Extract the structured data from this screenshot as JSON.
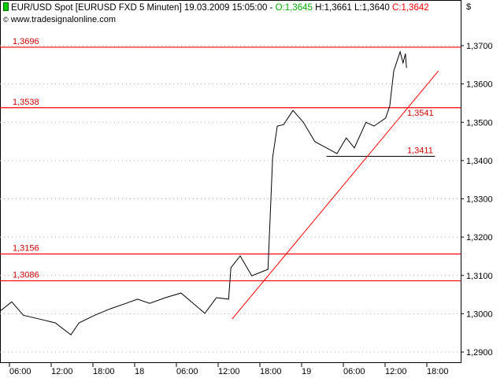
{
  "header": {
    "instrument": "EUR/USD Spot [EURUSD FXD  5 Minuten] 19.03.2009 15:05:00 - ",
    "open": "O:1,3645",
    "high": "H:1,3661",
    "low": "L:1,3640",
    "close": "C:1,3642",
    "source": "www.tradesignalonline.com",
    "currency": "$"
  },
  "colors": {
    "price": "#000000",
    "levels": "#ff0000",
    "level_labels": "#cc0000",
    "open": "#00aa00",
    "close": "#ff0000",
    "grid": "#999999"
  },
  "chart_data": {
    "type": "line",
    "title": "EUR/USD Spot [EURUSD FXD  5 Minuten]",
    "ylim": [
      1.288,
      1.372
    ],
    "y_ticks": [
      "1,2900",
      "1,3000",
      "1,3100",
      "1,3200",
      "1,3300",
      "1,3400",
      "1,3500",
      "1,3600",
      "1,3700"
    ],
    "x_ticks": [
      {
        "t": "17.03 06:00",
        "label": "06:00"
      },
      {
        "t": "17.03 12:00",
        "label": "12:00"
      },
      {
        "t": "17.03 18:00",
        "label": "18:00"
      },
      {
        "t": "18.03 00:00",
        "label": "18"
      },
      {
        "t": "18.03 06:00",
        "label": "06:00"
      },
      {
        "t": "18.03 12:00",
        "label": "12:00"
      },
      {
        "t": "18.03 18:00",
        "label": "18:00"
      },
      {
        "t": "19.03 00:00",
        "label": "19"
      },
      {
        "t": "19.03 06:00",
        "label": "06:00"
      },
      {
        "t": "19.03 12:00",
        "label": "12:00"
      },
      {
        "t": "19.03 18:00",
        "label": "18:00"
      }
    ],
    "grid": "horizontal dotted",
    "series": [
      {
        "points": [
          [
            "17.03 04:40",
            1.3007
          ],
          [
            "17.03 06:20",
            1.3031
          ],
          [
            "17.03 08:00",
            1.2996
          ],
          [
            "17.03 10:20",
            1.2986
          ],
          [
            "17.03 12:35",
            1.2976
          ],
          [
            "17.03 14:50",
            1.2945
          ],
          [
            "17.03 16:00",
            1.2976
          ],
          [
            "17.03 18:15",
            1.2996
          ],
          [
            "17.03 20:30",
            1.3013
          ],
          [
            "17.03 22:45",
            1.3027
          ],
          [
            "18.03 00:25",
            1.3038
          ],
          [
            "18.03 02:10",
            1.3027
          ],
          [
            "18.03 04:25",
            1.3042
          ],
          [
            "18.03 06:40",
            1.3054
          ],
          [
            "18.03 08:25",
            1.3027
          ],
          [
            "18.03 10:05",
            1.3001
          ],
          [
            "18.03 11:45",
            1.3042
          ],
          [
            "18.03 13:30",
            1.3038
          ],
          [
            "18.03 13:50",
            1.312
          ],
          [
            "18.03 15:10",
            1.3151
          ],
          [
            "18.03 16:50",
            1.3099
          ],
          [
            "18.03 19:10",
            1.3116
          ],
          [
            "18.03 19:30",
            1.3264
          ],
          [
            "18.03 19:50",
            1.3408
          ],
          [
            "18.03 20:30",
            1.349
          ],
          [
            "18.03 21:25",
            1.3494
          ],
          [
            "18.03 22:45",
            1.3531
          ],
          [
            "19.03 00:15",
            1.35
          ],
          [
            "19.03 01:55",
            1.3449
          ],
          [
            "19.03 03:35",
            1.3433
          ],
          [
            "19.03 05:05",
            1.3418
          ],
          [
            "19.03 06:25",
            1.3459
          ],
          [
            "19.03 07:35",
            1.3433
          ],
          [
            "19.03 09:15",
            1.35
          ],
          [
            "19.03 10:25",
            1.349
          ],
          [
            "19.03 12:05",
            1.3511
          ],
          [
            "19.03 12:40",
            1.3542
          ],
          [
            "19.03 13:15",
            1.3634
          ],
          [
            "19.03 14:10",
            1.3684
          ],
          [
            "19.03 14:35",
            1.3655
          ],
          [
            "19.03 14:55",
            1.3679
          ],
          [
            "19.03 15:05",
            1.3642
          ]
        ]
      }
    ],
    "horizontal_levels": [
      {
        "value": 1.3696,
        "label": "1,3696"
      },
      {
        "value": 1.3538,
        "label": "1,3538"
      },
      {
        "value": 1.3156,
        "label": "1,3156"
      },
      {
        "value": 1.3086,
        "label": "1,3086"
      }
    ],
    "short_level": {
      "value": 1.3411,
      "label": "1,3411",
      "from": "19.03 03:35",
      "to": "19.03 19:10"
    },
    "trendline": {
      "from": [
        "18.03 14:00",
        1.2986
      ],
      "to": [
        "19.03 19:40",
        1.3634
      ],
      "label": "1,3541"
    }
  }
}
